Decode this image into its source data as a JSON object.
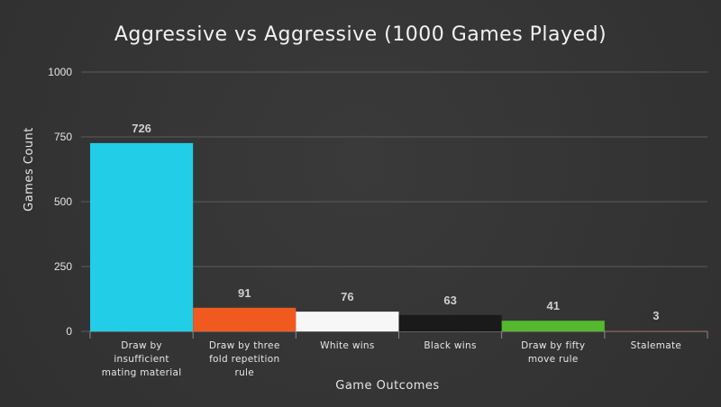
{
  "chart_data": {
    "type": "bar",
    "title": "Aggressive vs Aggressive (1000 Games Played)",
    "xlabel": "Game Outcomes",
    "ylabel": "Games Count",
    "ylim": [
      0,
      1000
    ],
    "yticks": [
      0,
      250,
      500,
      750,
      1000
    ],
    "grid": true,
    "categories": [
      "Draw by insufficient mating material",
      "Draw by three fold repetition rule",
      "White wins",
      "Black wins",
      "Draw by fifty move rule",
      "Stalemate"
    ],
    "category_lines": [
      [
        "Draw by",
        "insufficient",
        "mating material"
      ],
      [
        "Draw by three",
        "fold repetition",
        "rule"
      ],
      [
        "White wins"
      ],
      [
        "Black wins"
      ],
      [
        "Draw by fifty",
        "move rule"
      ],
      [
        "Stalemate"
      ]
    ],
    "values": [
      726,
      91,
      76,
      63,
      41,
      3
    ],
    "colors": [
      "#22cde8",
      "#f05a1e",
      "#f7f7f7",
      "#1a1a1a",
      "#55b82e",
      "#7a4a3a"
    ]
  }
}
